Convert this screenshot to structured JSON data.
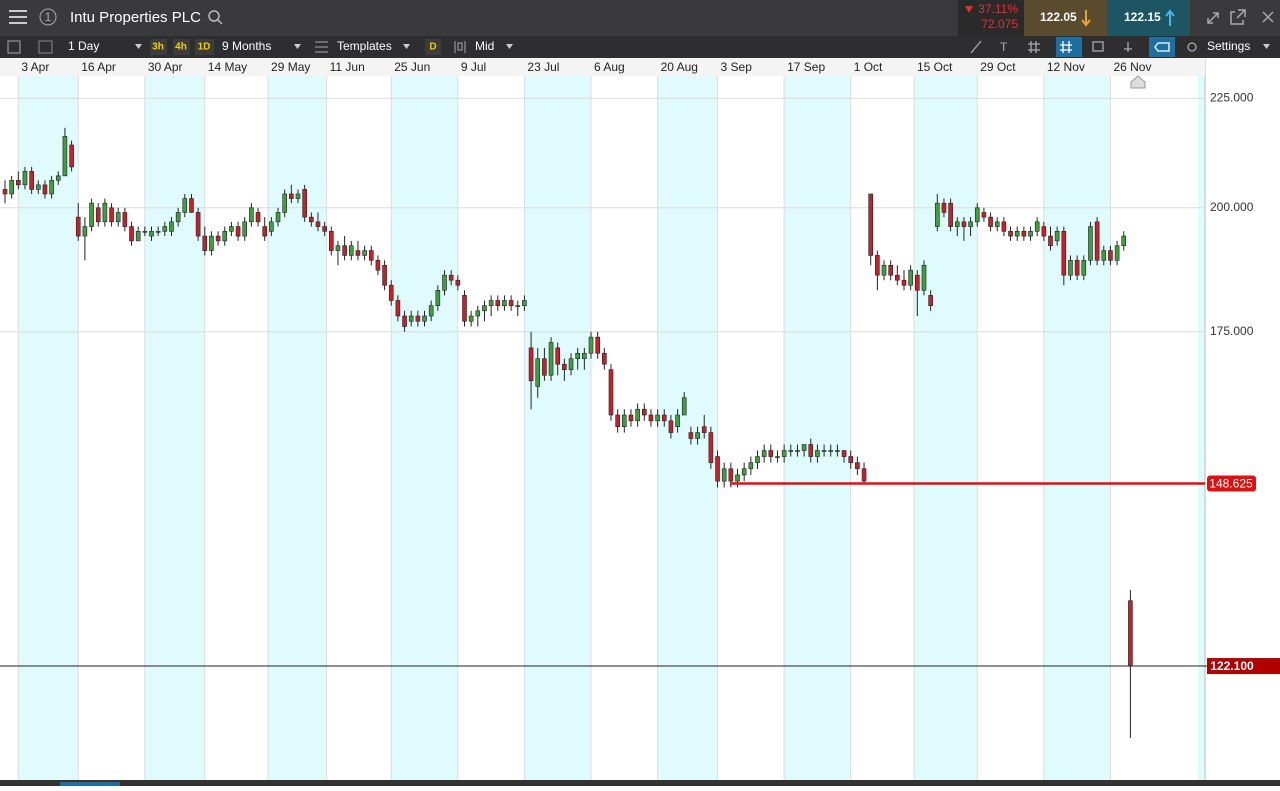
{
  "header": {
    "title": "Intu Properties PLC",
    "change_percent": "37.11%",
    "change_value": "72.075",
    "sell": "122.05",
    "buy": "122.15"
  },
  "toolbar": {
    "interval": "1 Day",
    "quick": [
      "3h",
      "4h",
      "1D"
    ],
    "range": "9 Months",
    "templates": "Templates",
    "d": "D",
    "price_type": "Mid",
    "settings": "Settings"
  },
  "chart": {
    "type": "candlestick",
    "log_y": true,
    "grid": true,
    "up_color": "#3f9e3f",
    "down_color": "#c8202a",
    "xlim": [
      -0.75,
      180.2
    ],
    "ylim": [
      108,
      234
    ],
    "yticks": [
      {
        "value": 225,
        "label": "225.000"
      },
      {
        "value": 200,
        "label": "200.000"
      },
      {
        "value": 175,
        "label": "175.000"
      }
    ],
    "xticks": [
      {
        "value": 2,
        "label": "3 Apr"
      },
      {
        "value": 11,
        "label": "16 Apr"
      },
      {
        "value": 21,
        "label": "30 Apr"
      },
      {
        "value": 30,
        "label": "14 May"
      },
      {
        "value": 39.5,
        "label": "29 May"
      },
      {
        "value": 48.3,
        "label": "11 Jun"
      },
      {
        "value": 58,
        "label": "25 Jun"
      },
      {
        "value": 68,
        "label": "9 Jul"
      },
      {
        "value": 78,
        "label": "23 Jul"
      },
      {
        "value": 88,
        "label": "6 Aug"
      },
      {
        "value": 98,
        "label": "20 Aug"
      },
      {
        "value": 107,
        "label": "3 Sep"
      },
      {
        "value": 117,
        "label": "17 Sep"
      },
      {
        "value": 127,
        "label": "1 Oct"
      },
      {
        "value": 136.5,
        "label": "15 Oct"
      },
      {
        "value": 146,
        "label": "29 Oct"
      },
      {
        "value": 156,
        "label": "12 Nov"
      },
      {
        "value": 166,
        "label": "26 Nov"
      }
    ],
    "levels": [
      {
        "value": 148.625,
        "color": "#e01010"
      },
      {
        "value": 122.1,
        "label": "122.100",
        "color": "#222222"
      }
    ],
    "ohlc": [
      [
        204,
        206,
        201,
        203
      ],
      [
        203,
        207,
        202,
        206
      ],
      [
        206,
        208,
        204,
        205
      ],
      [
        205,
        209,
        204,
        208
      ],
      [
        208,
        209,
        203,
        204
      ],
      [
        204,
        206,
        203,
        205
      ],
      [
        205,
        206,
        202,
        203
      ],
      [
        203,
        207,
        202,
        206
      ],
      [
        206,
        208,
        205,
        207
      ],
      [
        207,
        218,
        207,
        216
      ],
      [
        214,
        215,
        208,
        209
      ],
      [
        198,
        201,
        193,
        194
      ],
      [
        194,
        198,
        189,
        196
      ],
      [
        196,
        202,
        195,
        201
      ],
      [
        200,
        201,
        196,
        197
      ],
      [
        197,
        202,
        196,
        201
      ],
      [
        200,
        201,
        196,
        197
      ],
      [
        197,
        200,
        196,
        199
      ],
      [
        199,
        200,
        195,
        196
      ],
      [
        196,
        197,
        192,
        193
      ],
      [
        193,
        196,
        193,
        195
      ],
      [
        195,
        196,
        194,
        195
      ],
      [
        194,
        196,
        193,
        195
      ],
      [
        195,
        196,
        194,
        195
      ],
      [
        195,
        197,
        194,
        196
      ],
      [
        195,
        198,
        194,
        197
      ],
      [
        197,
        200,
        196,
        199
      ],
      [
        199,
        203,
        198,
        202
      ],
      [
        202,
        203,
        199,
        199
      ],
      [
        199,
        200,
        193,
        194
      ],
      [
        194,
        196,
        190,
        191
      ],
      [
        191,
        195,
        190,
        194
      ],
      [
        194,
        195,
        192,
        193
      ],
      [
        193,
        196,
        192,
        195
      ],
      [
        195,
        197,
        194,
        196
      ],
      [
        196,
        197,
        193,
        194
      ],
      [
        194,
        198,
        193,
        197
      ],
      [
        197,
        201,
        196,
        200
      ],
      [
        199,
        200,
        196,
        197
      ],
      [
        196,
        198,
        193,
        194
      ],
      [
        195,
        198,
        194,
        197
      ],
      [
        197,
        200,
        196,
        199
      ],
      [
        199,
        204,
        198,
        203
      ],
      [
        203,
        205,
        201,
        202
      ],
      [
        202,
        204,
        201,
        203
      ],
      [
        204,
        205,
        197,
        198
      ],
      [
        198,
        199,
        196,
        197
      ],
      [
        197,
        199,
        195,
        196
      ],
      [
        196,
        197,
        194,
        195
      ],
      [
        195,
        196,
        190,
        191
      ],
      [
        191,
        193,
        188,
        192
      ],
      [
        192,
        194,
        189,
        190
      ],
      [
        190,
        193,
        189,
        192
      ],
      [
        191,
        193,
        189,
        190
      ],
      [
        190,
        192,
        189,
        191
      ],
      [
        191,
        192,
        188,
        189
      ],
      [
        189,
        190,
        186,
        187
      ],
      [
        188,
        189,
        183,
        184
      ],
      [
        184,
        185,
        180,
        181
      ],
      [
        181,
        182,
        177,
        178
      ],
      [
        178,
        179,
        175,
        176
      ],
      [
        177,
        179,
        176,
        178
      ],
      [
        178,
        179,
        176,
        177
      ],
      [
        177,
        179,
        176,
        178
      ],
      [
        178,
        181,
        177,
        180
      ],
      [
        180,
        184,
        179,
        183
      ],
      [
        183,
        187,
        182,
        186
      ],
      [
        186,
        187,
        184,
        185
      ],
      [
        185,
        186,
        183,
        184
      ],
      [
        182,
        183,
        176,
        177
      ],
      [
        177,
        179,
        176,
        178
      ],
      [
        178,
        180,
        176,
        179
      ],
      [
        179,
        181,
        177,
        180
      ],
      [
        180,
        182,
        178,
        181
      ],
      [
        181,
        182,
        179,
        180
      ],
      [
        180,
        182,
        179,
        181
      ],
      [
        181,
        182,
        179,
        180
      ],
      [
        180,
        181,
        178,
        180
      ],
      [
        180,
        182,
        179,
        181
      ],
      [
        172,
        175,
        161,
        166
      ],
      [
        165,
        172,
        163,
        170
      ],
      [
        170,
        172,
        166,
        167
      ],
      [
        167,
        174,
        166,
        173
      ],
      [
        172,
        173,
        167,
        169
      ],
      [
        169,
        170,
        166,
        168
      ],
      [
        168,
        171,
        167,
        170
      ],
      [
        170,
        172,
        168,
        171
      ],
      [
        170,
        172,
        168,
        171
      ],
      [
        171,
        175,
        170,
        174
      ],
      [
        174,
        175,
        170,
        171
      ],
      [
        171,
        172,
        168,
        169
      ],
      [
        168,
        169,
        159,
        160
      ],
      [
        160,
        161,
        157,
        158
      ],
      [
        158,
        161,
        157,
        160
      ],
      [
        160,
        161,
        158,
        159
      ],
      [
        159,
        162,
        158,
        161
      ],
      [
        161,
        162,
        159,
        160
      ],
      [
        160,
        161,
        158,
        159
      ],
      [
        159,
        161,
        158,
        160
      ],
      [
        160,
        161,
        158,
        159
      ],
      [
        159,
        160,
        156,
        157
      ],
      [
        158,
        161,
        157,
        160
      ],
      [
        160,
        164,
        160,
        163
      ],
      [
        157,
        158,
        155,
        156
      ],
      [
        156,
        158,
        155,
        157
      ],
      [
        158,
        160,
        156,
        157
      ],
      [
        157,
        158,
        151,
        152
      ],
      [
        153,
        154,
        148,
        149
      ],
      [
        149,
        152,
        148,
        151
      ],
      [
        151,
        152,
        148,
        149
      ],
      [
        149,
        151,
        148,
        150
      ],
      [
        150,
        152,
        149,
        151
      ],
      [
        151,
        153,
        150,
        152
      ],
      [
        152,
        154,
        151,
        153
      ],
      [
        153,
        155,
        152,
        154
      ],
      [
        154,
        155,
        152,
        153
      ],
      [
        153,
        154,
        152,
        153
      ],
      [
        153,
        155,
        152,
        154
      ],
      [
        154,
        155,
        153,
        154
      ],
      [
        154,
        155,
        153,
        154
      ],
      [
        154,
        155,
        153,
        155
      ],
      [
        155,
        156,
        152,
        153
      ],
      [
        153,
        155,
        152,
        154
      ],
      [
        154,
        155,
        153,
        154
      ],
      [
        154,
        155,
        153,
        154
      ],
      [
        154,
        155,
        153,
        154
      ],
      [
        154,
        154,
        152,
        153
      ],
      [
        153,
        154,
        151,
        152
      ],
      [
        152,
        153,
        150,
        151
      ],
      [
        151,
        152,
        148.625,
        149
      ],
      [
        203,
        203,
        188,
        190
      ],
      [
        190,
        191,
        183,
        186
      ],
      [
        186,
        189,
        185,
        188
      ],
      [
        188,
        189,
        185,
        186
      ],
      [
        186,
        188,
        184,
        185
      ],
      [
        185,
        187,
        183,
        184
      ],
      [
        184,
        188,
        183,
        187
      ],
      [
        186,
        187,
        178,
        183
      ],
      [
        183,
        189,
        182,
        188
      ],
      [
        182,
        183,
        179,
        180
      ],
      [
        196,
        203,
        195,
        201
      ],
      [
        201,
        202,
        198,
        199
      ],
      [
        201,
        202,
        195,
        196
      ],
      [
        196,
        198,
        194,
        197
      ],
      [
        197,
        198,
        193,
        196
      ],
      [
        196,
        198,
        194,
        197
      ],
      [
        197,
        201,
        196,
        200
      ],
      [
        199,
        200,
        197,
        198
      ],
      [
        198,
        199,
        195,
        196
      ],
      [
        196,
        198,
        195,
        197
      ],
      [
        197,
        198,
        194,
        195
      ],
      [
        195,
        196,
        193,
        194
      ],
      [
        194,
        196,
        193,
        195
      ],
      [
        195,
        196,
        193,
        194
      ],
      [
        194,
        196,
        193,
        195
      ],
      [
        195,
        198,
        194,
        197
      ],
      [
        196,
        197,
        193,
        194
      ],
      [
        194,
        196,
        191,
        192
      ],
      [
        193,
        196,
        192,
        195
      ],
      [
        195,
        196,
        184,
        186
      ],
      [
        186,
        190,
        185,
        189
      ],
      [
        189,
        190,
        185,
        186
      ],
      [
        186,
        190,
        185,
        189
      ],
      [
        189,
        197,
        188,
        196
      ],
      [
        197,
        198,
        188,
        189
      ],
      [
        189,
        192,
        188,
        191
      ],
      [
        191,
        192,
        188,
        189
      ],
      [
        189,
        193,
        188,
        192
      ],
      [
        192,
        195,
        191,
        194
      ],
      [
        131,
        132.5,
        113,
        122.1
      ]
    ]
  }
}
